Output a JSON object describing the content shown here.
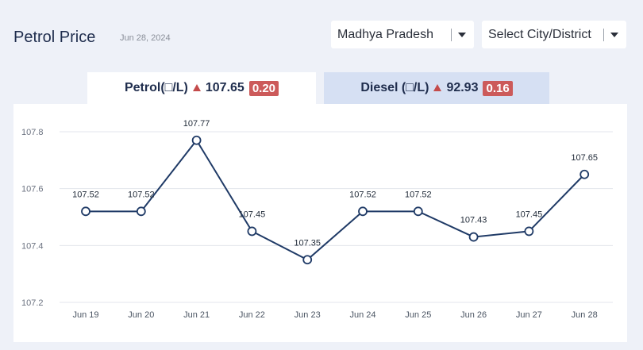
{
  "header": {
    "title": "Petrol Price",
    "date": "Jun 28, 2024"
  },
  "filters": {
    "state": "Madhya Pradesh",
    "city": "Select City/District"
  },
  "tabs": [
    {
      "label": "Petrol(□/L)",
      "price": "107.65",
      "change": "0.20",
      "active": true
    },
    {
      "label": "Diesel (□/L)",
      "price": "92.93",
      "change": "0.16",
      "active": false
    }
  ],
  "colors": {
    "line": "#1f3a66",
    "up_badge": "#cc5a5a",
    "up_arrow": "#c44b4b",
    "active_tab": "#ffffff",
    "inactive_tab": "#d6e0f3"
  },
  "chart_data": {
    "type": "line",
    "categories": [
      "Jun 19",
      "Jun 20",
      "Jun 21",
      "Jun 22",
      "Jun 23",
      "Jun 24",
      "Jun 25",
      "Jun 26",
      "Jun 27",
      "Jun 28"
    ],
    "values": [
      107.52,
      107.52,
      107.77,
      107.45,
      107.35,
      107.52,
      107.52,
      107.43,
      107.45,
      107.65
    ],
    "data_labels": [
      "107.52",
      "107.52",
      "107.77",
      "107.45",
      "107.35",
      "107.52",
      "107.52",
      "107.43",
      "107.45",
      "107.65"
    ],
    "yticks": [
      "107.2",
      "107.4",
      "107.6",
      "107.8"
    ],
    "ylim": [
      107.2,
      107.8
    ],
    "grid": true
  }
}
